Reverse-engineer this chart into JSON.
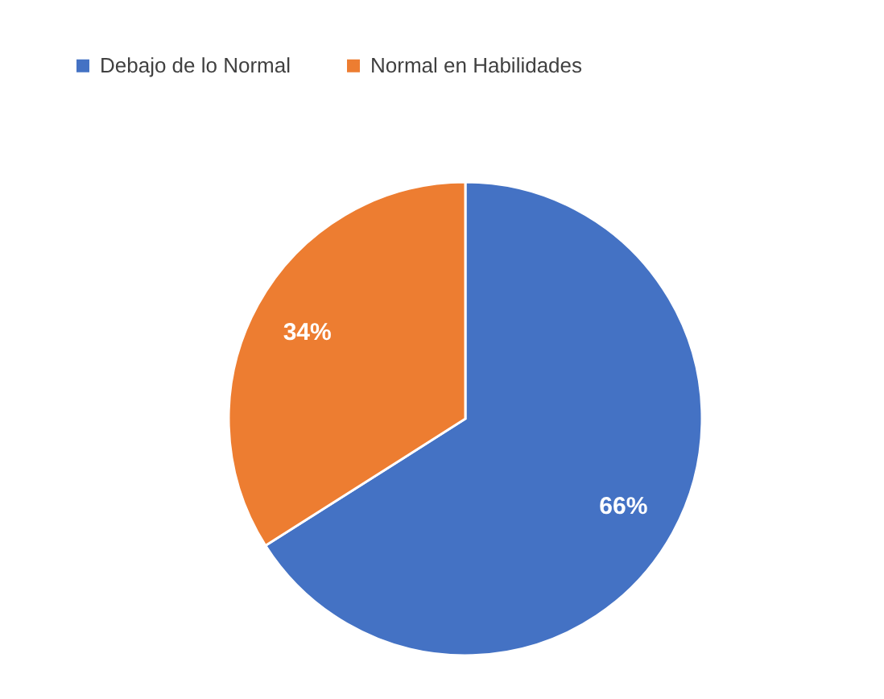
{
  "chart_data": {
    "type": "pie",
    "categories": [
      "Debajo de lo Normal",
      "Normal en Habilidades"
    ],
    "values": [
      66,
      34
    ],
    "colors": [
      "#4472c4",
      "#ed7d31"
    ],
    "value_labels": [
      "66%",
      "34%"
    ],
    "legend": "top"
  }
}
